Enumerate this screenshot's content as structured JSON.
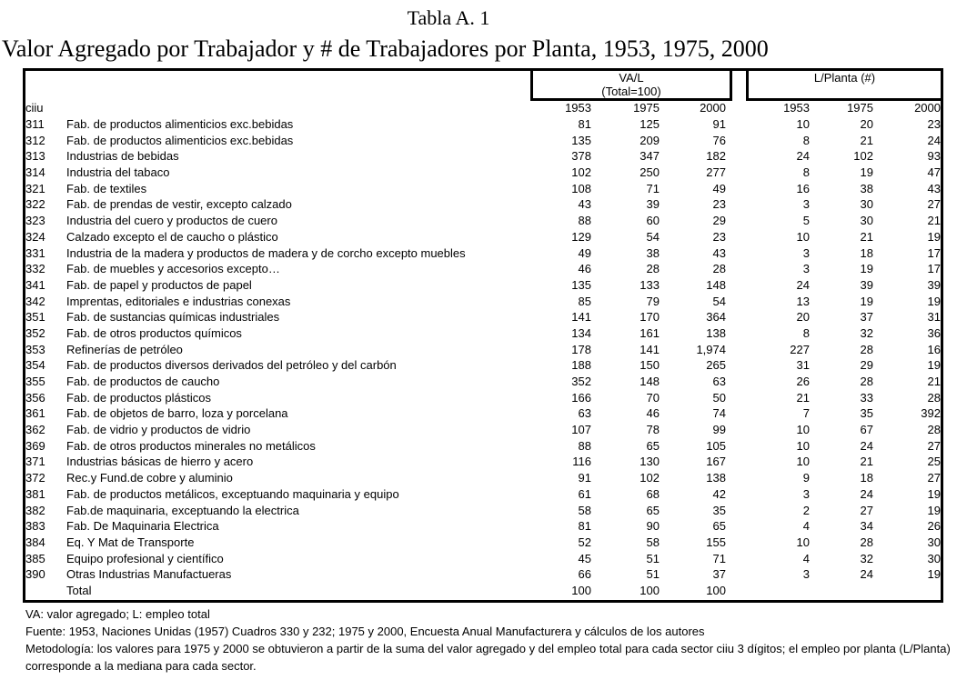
{
  "page": {
    "title": "Tabla A. 1",
    "subtitle": "Valor Agregado por Trabajador y # de Trabajadores por Planta, 1953, 1975, 2000"
  },
  "table": {
    "group_headers": {
      "va_l": {
        "line1": "VA/L",
        "line2": "(Total=100)"
      },
      "l_planta": {
        "line1": "L/Planta (#)"
      }
    },
    "ciiu_header": "ciiu",
    "year_headers": [
      "1953",
      "1975",
      "2000"
    ],
    "rows": [
      {
        "ciiu": "311",
        "label": "Fab. de productos alimenticios exc.bebidas",
        "va_l": [
          "81",
          "125",
          "91"
        ],
        "l_planta": [
          "10",
          "20",
          "23"
        ]
      },
      {
        "ciiu": "312",
        "label": "Fab. de productos alimenticios exc.bebidas",
        "va_l": [
          "135",
          "209",
          "76"
        ],
        "l_planta": [
          "8",
          "21",
          "24"
        ]
      },
      {
        "ciiu": "313",
        "label": "Industrias de bebidas",
        "va_l": [
          "378",
          "347",
          "182"
        ],
        "l_planta": [
          "24",
          "102",
          "93"
        ]
      },
      {
        "ciiu": "314",
        "label": "Industria del tabaco",
        "va_l": [
          "102",
          "250",
          "277"
        ],
        "l_planta": [
          "8",
          "19",
          "47"
        ]
      },
      {
        "ciiu": "321",
        "label": "Fab. de textiles",
        "va_l": [
          "108",
          "71",
          "49"
        ],
        "l_planta": [
          "16",
          "38",
          "43"
        ]
      },
      {
        "ciiu": "322",
        "label": "Fab. de prendas de vestir, excepto calzado",
        "va_l": [
          "43",
          "39",
          "23"
        ],
        "l_planta": [
          "3",
          "30",
          "27"
        ]
      },
      {
        "ciiu": "323",
        "label": "Industria del cuero y productos de cuero",
        "va_l": [
          "88",
          "60",
          "29"
        ],
        "l_planta": [
          "5",
          "30",
          "21"
        ]
      },
      {
        "ciiu": "324",
        "label": "Calzado excepto el de caucho o plástico",
        "va_l": [
          "129",
          "54",
          "23"
        ],
        "l_planta": [
          "10",
          "21",
          "19"
        ]
      },
      {
        "ciiu": "331",
        "label": "Industria de la madera y productos de madera y de corcho excepto muebles",
        "va_l": [
          "49",
          "38",
          "43"
        ],
        "l_planta": [
          "3",
          "18",
          "17"
        ]
      },
      {
        "ciiu": "332",
        "label": "Fab. de muebles y accesorios excepto…",
        "va_l": [
          "46",
          "28",
          "28"
        ],
        "l_planta": [
          "3",
          "19",
          "17"
        ]
      },
      {
        "ciiu": "341",
        "label": "Fab. de papel y productos de papel",
        "va_l": [
          "135",
          "133",
          "148"
        ],
        "l_planta": [
          "24",
          "39",
          "39"
        ]
      },
      {
        "ciiu": "342",
        "label": "Imprentas, editoriales e industrias conexas",
        "va_l": [
          "85",
          "79",
          "54"
        ],
        "l_planta": [
          "13",
          "19",
          "19"
        ]
      },
      {
        "ciiu": "351",
        "label": "Fab. de sustancias químicas industriales",
        "va_l": [
          "141",
          "170",
          "364"
        ],
        "l_planta": [
          "20",
          "37",
          "31"
        ]
      },
      {
        "ciiu": "352",
        "label": "Fab. de otros productos químicos",
        "va_l": [
          "134",
          "161",
          "138"
        ],
        "l_planta": [
          "8",
          "32",
          "36"
        ]
      },
      {
        "ciiu": "353",
        "label": "Refinerías de petróleo",
        "va_l": [
          "178",
          "141",
          "1,974"
        ],
        "l_planta": [
          "227",
          "28",
          "16"
        ]
      },
      {
        "ciiu": "354",
        "label": "Fab. de productos diversos derivados del petróleo y del carbón",
        "va_l": [
          "188",
          "150",
          "265"
        ],
        "l_planta": [
          "31",
          "29",
          "19"
        ]
      },
      {
        "ciiu": "355",
        "label": "Fab. de productos de caucho",
        "va_l": [
          "352",
          "148",
          "63"
        ],
        "l_planta": [
          "26",
          "28",
          "21"
        ]
      },
      {
        "ciiu": "356",
        "label": "Fab. de productos plásticos",
        "va_l": [
          "166",
          "70",
          "50"
        ],
        "l_planta": [
          "21",
          "33",
          "28"
        ]
      },
      {
        "ciiu": "361",
        "label": "Fab. de objetos de barro, loza y porcelana",
        "va_l": [
          "63",
          "46",
          "74"
        ],
        "l_planta": [
          "7",
          "35",
          "392"
        ]
      },
      {
        "ciiu": "362",
        "label": "Fab. de vidrio y productos de vidrio",
        "va_l": [
          "107",
          "78",
          "99"
        ],
        "l_planta": [
          "10",
          "67",
          "28"
        ]
      },
      {
        "ciiu": "369",
        "label": "Fab. de otros productos minerales no metálicos",
        "va_l": [
          "88",
          "65",
          "105"
        ],
        "l_planta": [
          "10",
          "24",
          "27"
        ]
      },
      {
        "ciiu": "371",
        "label": "Industrias básicas de hierro y acero",
        "va_l": [
          "116",
          "130",
          "167"
        ],
        "l_planta": [
          "10",
          "21",
          "25"
        ]
      },
      {
        "ciiu": "372",
        "label": "Rec.y Fund.de cobre y aluminio",
        "va_l": [
          "91",
          "102",
          "138"
        ],
        "l_planta": [
          "9",
          "18",
          "27"
        ]
      },
      {
        "ciiu": "381",
        "label": "Fab. de productos metálicos, exceptuando maquinaria y equipo",
        "va_l": [
          "61",
          "68",
          "42"
        ],
        "l_planta": [
          "3",
          "24",
          "19"
        ]
      },
      {
        "ciiu": "382",
        "label": "Fab.de maquinaria, exceptuando la electrica",
        "va_l": [
          "58",
          "65",
          "35"
        ],
        "l_planta": [
          "2",
          "27",
          "19"
        ]
      },
      {
        "ciiu": "383",
        "label": "Fab. De Maquinaria Electrica",
        "va_l": [
          "81",
          "90",
          "65"
        ],
        "l_planta": [
          "4",
          "34",
          "26"
        ]
      },
      {
        "ciiu": "384",
        "label": "Eq. Y Mat de Transporte",
        "va_l": [
          "52",
          "58",
          "155"
        ],
        "l_planta": [
          "10",
          "28",
          "30"
        ]
      },
      {
        "ciiu": "385",
        "label": "Equipo profesional y científico",
        "va_l": [
          "45",
          "51",
          "71"
        ],
        "l_planta": [
          "4",
          "32",
          "30"
        ]
      },
      {
        "ciiu": "390",
        "label": "Otras Industrias Manufactueras",
        "va_l": [
          "66",
          "51",
          "37"
        ],
        "l_planta": [
          "3",
          "24",
          "19"
        ]
      }
    ],
    "total_row": {
      "ciiu": "",
      "label": "Total",
      "va_l": [
        "100",
        "100",
        "100"
      ],
      "l_planta": [
        "",
        "",
        ""
      ]
    }
  },
  "footnotes": [
    "VA: valor agregado; L: empleo total",
    "Fuente: 1953, Naciones Unidas (1957) Cuadros 330 y 232; 1975 y 2000, Encuesta Anual Manufacturera y cálculos de los autores",
    "Metodología: los valores para 1975 y 2000 se obtuvieron a partir de la suma del valor agregado y del empleo total para cada sector ciiu 3 dígitos; el empleo por planta (L/Planta) corresponde a la mediana para cada sector."
  ]
}
